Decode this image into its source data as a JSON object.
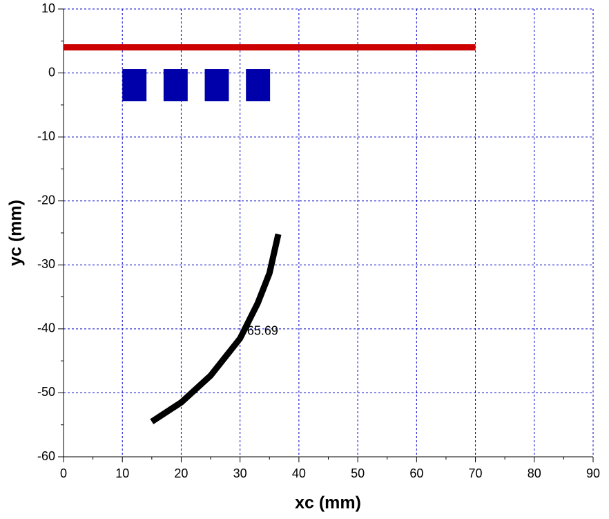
{
  "chart_data": {
    "type": "line",
    "xlabel": "xc (mm)",
    "ylabel": "yc (mm)",
    "xlim": [
      0,
      90
    ],
    "ylim": [
      -60,
      10
    ],
    "xticks": [
      0,
      10,
      20,
      30,
      40,
      50,
      60,
      70,
      80,
      90
    ],
    "yticks": [
      10,
      0,
      -10,
      -20,
      -30,
      -40,
      -50,
      -60
    ],
    "xminorticks": [
      5,
      15,
      25,
      35,
      45,
      55,
      65,
      75,
      85
    ],
    "yminorticks": [
      5,
      -5,
      -15,
      -25,
      -35,
      -45,
      -55
    ],
    "grid": true,
    "grid_color": "#0000cc",
    "series": [
      {
        "color": "#cc0000",
        "x": [
          0,
          70
        ],
        "values": [
          4,
          4
        ]
      },
      {
        "color": "#000000",
        "x": [
          15,
          20,
          25,
          30,
          33,
          35,
          36.5
        ],
        "values": [
          -54.5,
          -51.5,
          -47.3,
          -41.5,
          -36,
          -31.3,
          -25.2
        ]
      }
    ],
    "rects": {
      "color": "#0000aa",
      "items": [
        {
          "x": [
            10,
            14.1
          ],
          "y": [
            0.6,
            -4.4
          ]
        },
        {
          "x": [
            17,
            21.1
          ],
          "y": [
            0.6,
            -4.4
          ]
        },
        {
          "x": [
            24,
            28.1
          ],
          "y": [
            0.6,
            -4.4
          ]
        },
        {
          "x": [
            31,
            35.1
          ],
          "y": [
            0.6,
            -4.4
          ]
        }
      ]
    },
    "annotations": [
      {
        "text": "65.69",
        "x": 31.2,
        "y": -40.4
      }
    ]
  }
}
